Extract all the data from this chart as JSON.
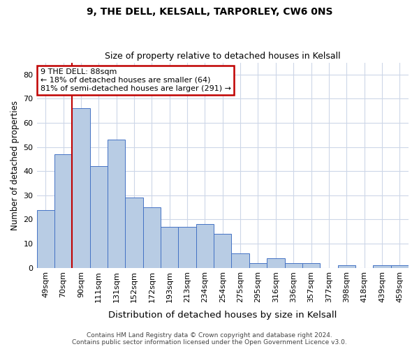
{
  "title1": "9, THE DELL, KELSALL, TARPORLEY, CW6 0NS",
  "title2": "Size of property relative to detached houses in Kelsall",
  "xlabel": "Distribution of detached houses by size in Kelsall",
  "ylabel": "Number of detached properties",
  "categories": [
    "49sqm",
    "70sqm",
    "90sqm",
    "111sqm",
    "131sqm",
    "152sqm",
    "172sqm",
    "193sqm",
    "213sqm",
    "234sqm",
    "254sqm",
    "275sqm",
    "295sqm",
    "316sqm",
    "336sqm",
    "357sqm",
    "377sqm",
    "398sqm",
    "418sqm",
    "439sqm",
    "459sqm"
  ],
  "values": [
    24,
    47,
    66,
    42,
    53,
    29,
    25,
    17,
    17,
    18,
    14,
    6,
    2,
    4,
    2,
    2,
    0,
    1,
    0,
    1,
    1
  ],
  "bar_color": "#b8cce4",
  "bar_edge_color": "#4472c4",
  "vline_color": "#c00000",
  "vline_pos": 1.5,
  "ylim": [
    0,
    85
  ],
  "yticks": [
    0,
    10,
    20,
    30,
    40,
    50,
    60,
    70,
    80
  ],
  "ann_line1": "9 THE DELL: 88sqm",
  "ann_line2": "← 18% of detached houses are smaller (64)",
  "ann_line3": "81% of semi-detached houses are larger (291) →",
  "annotation_box_color": "#ffffff",
  "annotation_box_edge": "#c00000",
  "footer_line1": "Contains HM Land Registry data © Crown copyright and database right 2024.",
  "footer_line2": "Contains public sector information licensed under the Open Government Licence v3.0.",
  "background_color": "#ffffff",
  "grid_color": "#cdd7e8",
  "title1_fontsize": 10,
  "title2_fontsize": 9,
  "ylabel_fontsize": 8.5,
  "xlabel_fontsize": 9.5,
  "tick_fontsize": 8,
  "ann_fontsize": 8,
  "footer_fontsize": 6.5
}
